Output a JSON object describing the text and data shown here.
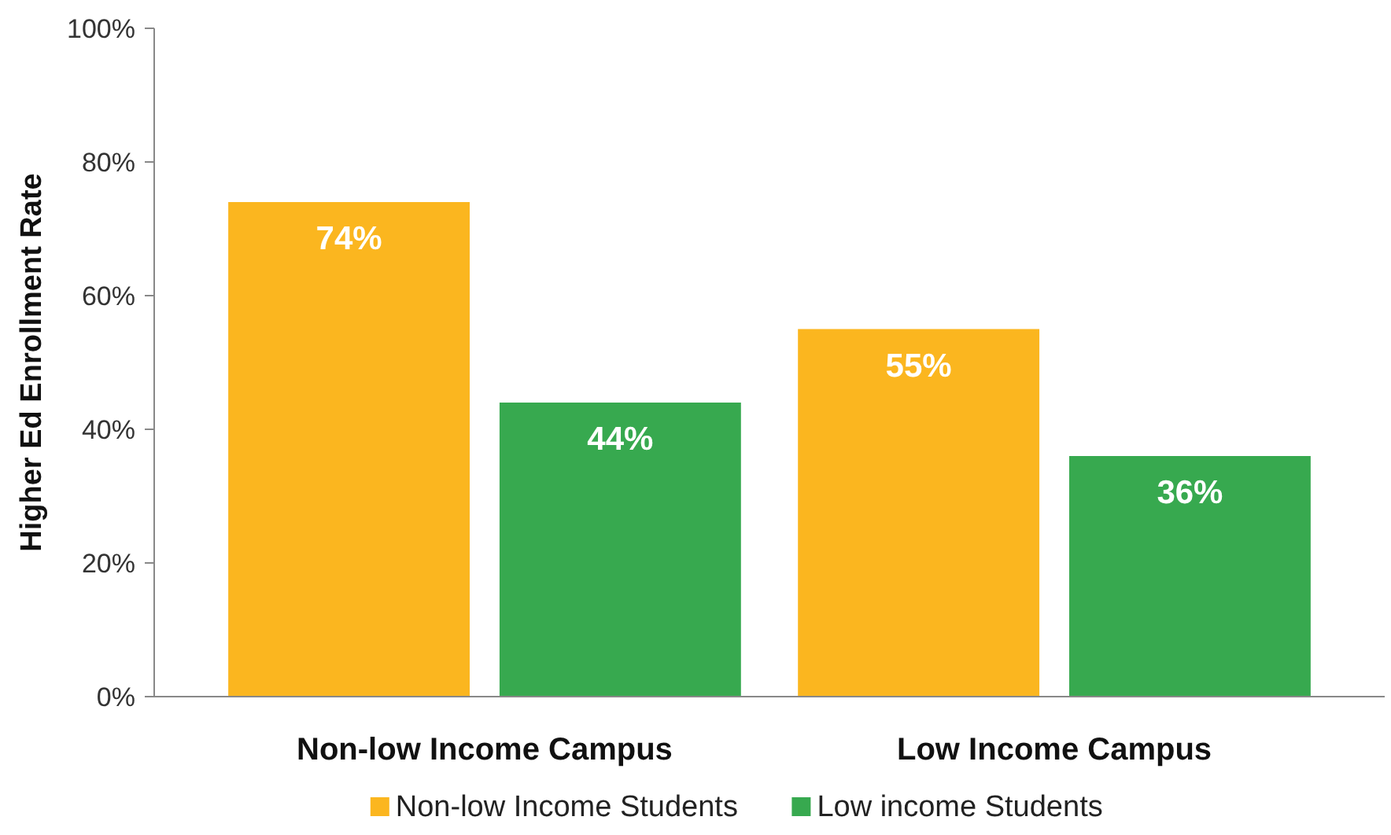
{
  "chart_data": {
    "type": "bar",
    "ylabel": "Higher Ed Enrollment Rate",
    "categories": [
      "Non-low Income Campus",
      "Low Income Campus"
    ],
    "series": [
      {
        "name": "Non-low Income Students",
        "color": "#fbb61f",
        "values": [
          74,
          55
        ],
        "value_labels": [
          "74%",
          "55%"
        ]
      },
      {
        "name": "Low income Students",
        "color": "#37a94f",
        "values": [
          44,
          36
        ],
        "value_labels": [
          "44%",
          "36%"
        ]
      }
    ],
    "ylim": [
      0,
      100
    ],
    "yticks": [
      {
        "value": 0,
        "label": "0%"
      },
      {
        "value": 20,
        "label": "20%"
      },
      {
        "value": 40,
        "label": "40%"
      },
      {
        "value": 60,
        "label": "60%"
      },
      {
        "value": 80,
        "label": "80%"
      },
      {
        "value": 100,
        "label": "100%"
      }
    ],
    "grid": false,
    "legend": "bottom"
  }
}
